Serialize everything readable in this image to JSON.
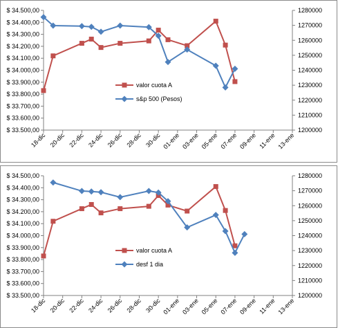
{
  "chart_data": [
    {
      "type": "line",
      "title": "",
      "xlabel": "",
      "ylabel": "",
      "categories": [
        "18-dic",
        "20-dic",
        "22-dic",
        "24-dic",
        "26-dic",
        "28-dic",
        "30-dic",
        "01-ene",
        "03-ene",
        "05-ene",
        "07-ene",
        "09-ene",
        "11-ene",
        "13-ene"
      ],
      "x_range_days": [
        0,
        26
      ],
      "y_left_ticks": [
        "$ 33.500,00",
        "$ 33.600,00",
        "$ 33.700,00",
        "$ 33.800,00",
        "$ 33.900,00",
        "$ 34.000,00",
        "$ 34.100,00",
        "$ 34.200,00",
        "$ 34.300,00",
        "$ 34.400,00",
        "$ 34.500,00"
      ],
      "y_left_range": [
        33500,
        34500
      ],
      "y_right_ticks": [
        "1200000",
        "1210000",
        "1220000",
        "1230000",
        "1240000",
        "1250000",
        "1260000",
        "1270000",
        "1280000"
      ],
      "y_right_range": [
        1200000,
        1280000
      ],
      "legend_position": "center",
      "series": [
        {
          "name": "valor cuota  A",
          "axis": "left",
          "color": "#c0504d",
          "marker": "square",
          "x": [
            "18-dic",
            "19-dic",
            "22-dic",
            "23-dic",
            "24-dic",
            "26-dic",
            "29-dic",
            "30-dic",
            "31-dic",
            "02-ene",
            "05-ene",
            "06-ene",
            "07-ene"
          ],
          "values": [
            33830,
            34120,
            34225,
            34260,
            34190,
            34225,
            34245,
            34335,
            34255,
            34205,
            34410,
            34210,
            33905
          ]
        },
        {
          "name": "s&p 500 (Pesos)",
          "axis": "right",
          "color": "#4f81bd",
          "marker": "diamond",
          "x": [
            "18-dic",
            "19-dic",
            "22-dic",
            "23-dic",
            "24-dic",
            "26-dic",
            "29-dic",
            "30-dic",
            "31-dic",
            "02-ene",
            "05-ene",
            "06-ene",
            "07-ene"
          ],
          "values": [
            1275500,
            1269800,
            1269500,
            1269000,
            1265700,
            1269800,
            1268800,
            1263000,
            1245500,
            1253800,
            1243000,
            1228500,
            1241000
          ]
        }
      ]
    },
    {
      "type": "line",
      "title": "",
      "xlabel": "",
      "ylabel": "",
      "categories": [
        "18-dic",
        "20-dic",
        "22-dic",
        "24-dic",
        "26-dic",
        "28-dic",
        "30-dic",
        "01-ene",
        "03-ene",
        "05-ene",
        "07-ene",
        "09-ene",
        "11-ene",
        "13-ene"
      ],
      "x_range_days": [
        0,
        26
      ],
      "y_left_ticks": [
        "$ 33.500,00",
        "$ 33.600,00",
        "$ 33.700,00",
        "$ 33.800,00",
        "$ 33.900,00",
        "$ 34.000,00",
        "$ 34.100,00",
        "$ 34.200,00",
        "$ 34.300,00",
        "$ 34.400,00",
        "$ 34.500,00"
      ],
      "y_left_range": [
        33500,
        34500
      ],
      "y_right_ticks": [
        "1200000",
        "1210000",
        "1220000",
        "1230000",
        "1240000",
        "1250000",
        "1260000",
        "1270000",
        "1280000"
      ],
      "y_right_range": [
        1200000,
        1280000
      ],
      "legend_position": "center",
      "series": [
        {
          "name": "valor cuota  A",
          "axis": "left",
          "color": "#c0504d",
          "marker": "square",
          "x": [
            "18-dic",
            "19-dic",
            "22-dic",
            "23-dic",
            "24-dic",
            "26-dic",
            "29-dic",
            "30-dic",
            "31-dic",
            "02-ene",
            "05-ene",
            "06-ene",
            "07-ene"
          ],
          "values": [
            33830,
            34120,
            34225,
            34260,
            34190,
            34225,
            34245,
            34335,
            34255,
            34205,
            34410,
            34210,
            33915
          ]
        },
        {
          "name": "desf 1 dia",
          "axis": "right",
          "color": "#4f81bd",
          "marker": "diamond",
          "x": [
            "19-dic",
            "22-dic",
            "23-dic",
            "24-dic",
            "26-dic",
            "29-dic",
            "30-dic",
            "31-dic",
            "02-ene",
            "05-ene",
            "06-ene",
            "07-ene",
            "08-ene"
          ],
          "values": [
            1275500,
            1269800,
            1269500,
            1269000,
            1265700,
            1269800,
            1268800,
            1263000,
            1245500,
            1253800,
            1243000,
            1228500,
            1241000
          ]
        }
      ]
    }
  ]
}
